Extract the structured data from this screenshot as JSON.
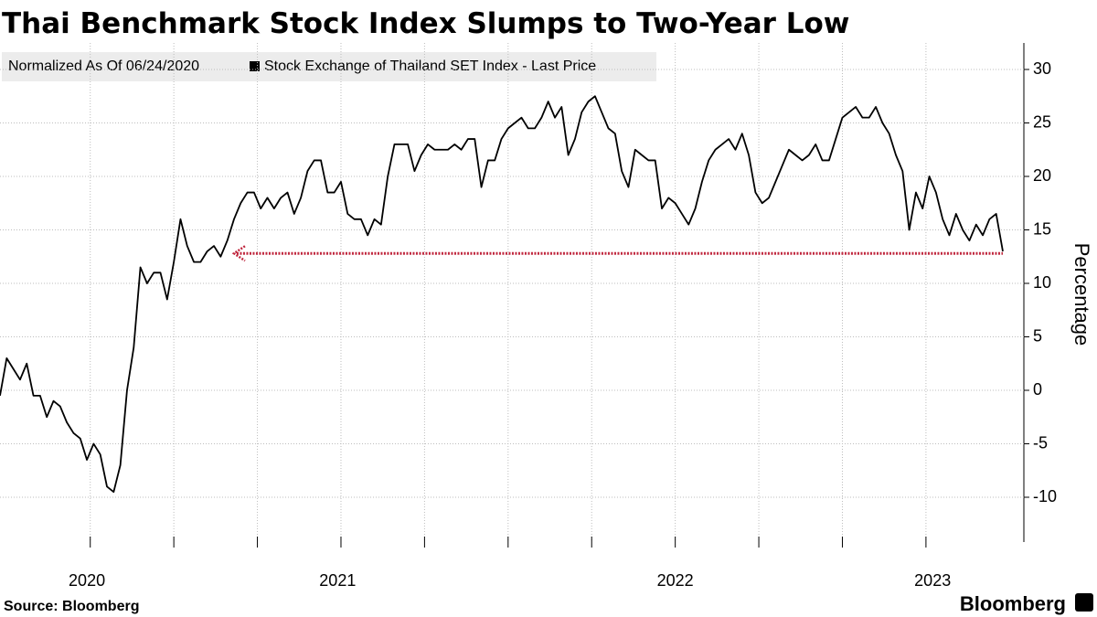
{
  "chart_data": {
    "type": "line",
    "title": "Thai Benchmark Stock Index Slumps to Two-Year Low",
    "subtitle": "Normalized As Of 06/24/2020",
    "y_label": "Percentage",
    "source": "Source: Bloomberg",
    "brand": "Bloomberg",
    "x": [
      2020.48,
      2020.5,
      2020.52,
      2020.54,
      2020.56,
      2020.58,
      2020.6,
      2020.62,
      2020.64,
      2020.66,
      2020.68,
      2020.7,
      2020.72,
      2020.74,
      2020.76,
      2020.78,
      2020.8,
      2020.82,
      2020.84,
      2020.86,
      2020.88,
      2020.9,
      2020.92,
      2020.94,
      2020.96,
      2020.98,
      2021.0,
      2021.02,
      2021.04,
      2021.06,
      2021.08,
      2021.1,
      2021.12,
      2021.14,
      2021.16,
      2021.18,
      2021.2,
      2021.22,
      2021.24,
      2021.26,
      2021.28,
      2021.3,
      2021.32,
      2021.34,
      2021.36,
      2021.38,
      2021.4,
      2021.42,
      2021.44,
      2021.46,
      2021.48,
      2021.5,
      2021.52,
      2021.54,
      2021.56,
      2021.58,
      2021.6,
      2021.62,
      2021.64,
      2021.66,
      2021.68,
      2021.7,
      2021.72,
      2021.74,
      2021.76,
      2021.78,
      2021.8,
      2021.82,
      2021.84,
      2021.86,
      2021.88,
      2021.9,
      2021.92,
      2021.94,
      2021.96,
      2021.98,
      2022.0,
      2022.02,
      2022.04,
      2022.06,
      2022.08,
      2022.1,
      2022.12,
      2022.14,
      2022.16,
      2022.18,
      2022.2,
      2022.22,
      2022.24,
      2022.26,
      2022.28,
      2022.3,
      2022.32,
      2022.34,
      2022.36,
      2022.38,
      2022.4,
      2022.42,
      2022.44,
      2022.46,
      2022.48,
      2022.5,
      2022.52,
      2022.54,
      2022.56,
      2022.58,
      2022.6,
      2022.62,
      2022.64,
      2022.66,
      2022.68,
      2022.7,
      2022.72,
      2022.74,
      2022.76,
      2022.78,
      2022.8,
      2022.82,
      2022.84,
      2022.86,
      2022.88,
      2022.9,
      2022.92,
      2022.94,
      2022.96,
      2022.98,
      2023.0,
      2023.02,
      2023.04,
      2023.06,
      2023.08,
      2023.1,
      2023.12,
      2023.14,
      2023.16,
      2023.18,
      2023.2,
      2023.22,
      2023.24,
      2023.26,
      2023.28,
      2023.3,
      2023.32,
      2023.34,
      2023.36,
      2023.38,
      2023.4,
      2023.42,
      2023.44,
      2023.46,
      2023.48
    ],
    "series": [
      {
        "name": "Stock Exchange of Thailand SET Index - Last Price",
        "color": "#000000",
        "values": [
          -0.5,
          3,
          2,
          1,
          2.5,
          -0.5,
          -0.5,
          -2.5,
          -1,
          -1.5,
          -3,
          -4,
          -4.5,
          -6.5,
          -5,
          -6,
          -9,
          -9.5,
          -7,
          0,
          4,
          11.5,
          10,
          11,
          11,
          8.5,
          12,
          16,
          13.5,
          12,
          12,
          13,
          13.5,
          12.5,
          14,
          16,
          17.5,
          18.5,
          18.5,
          17,
          18,
          17,
          18,
          18.5,
          16.5,
          18,
          20.5,
          21.5,
          21.5,
          18.5,
          18.5,
          19.5,
          16.5,
          16,
          16,
          14.5,
          16,
          15.5,
          20,
          23,
          23,
          23,
          20.5,
          22,
          23,
          22.5,
          22.5,
          22.5,
          23,
          22.5,
          23.5,
          23.5,
          19,
          21.5,
          21.5,
          23.5,
          24.5,
          25,
          25.5,
          24.5,
          24.5,
          25.5,
          27,
          25.5,
          26.5,
          22,
          23.5,
          26,
          27,
          27.5,
          26,
          24.5,
          24,
          20.5,
          19,
          22.5,
          22,
          21.5,
          21.5,
          17,
          18,
          17.5,
          16.5,
          15.5,
          17,
          19.5,
          21.5,
          22.5,
          23,
          23.5,
          22.5,
          24,
          22,
          18.5,
          17.5,
          18,
          19.5,
          21,
          22.5,
          22,
          21.5,
          22,
          23,
          21.5,
          21.5,
          23.5,
          25.5,
          26,
          26.5,
          25.5,
          25.5,
          26.5,
          25,
          24,
          22,
          20.5,
          15,
          18.5,
          17,
          20,
          18.5,
          16,
          14.5,
          16.5,
          15,
          14,
          15.5,
          14.5,
          16,
          16.5,
          13
        ]
      }
    ],
    "annotation_line": {
      "y": 12.8,
      "x": [
        2021.18,
        2023.48
      ],
      "color": "#c0283f"
    },
    "xlim": [
      2020.48,
      2023.48
    ],
    "xticks": [
      {
        "value": 2020.74,
        "label": "2020"
      },
      {
        "value": 2021.49,
        "label": "2021"
      },
      {
        "value": 2022.5,
        "label": "2022"
      },
      {
        "value": 2023.27,
        "label": "2023"
      }
    ],
    "xgrid": [
      2020.75,
      2021,
      2021.25,
      2021.5,
      2021.75,
      2022,
      2022.25,
      2022.5,
      2022.75,
      2023,
      2023.25
    ],
    "ylim": [
      -14,
      32.3
    ],
    "yticks": [
      -10,
      -5,
      0,
      5,
      10,
      15,
      20,
      25,
      30
    ],
    "grid": true
  }
}
